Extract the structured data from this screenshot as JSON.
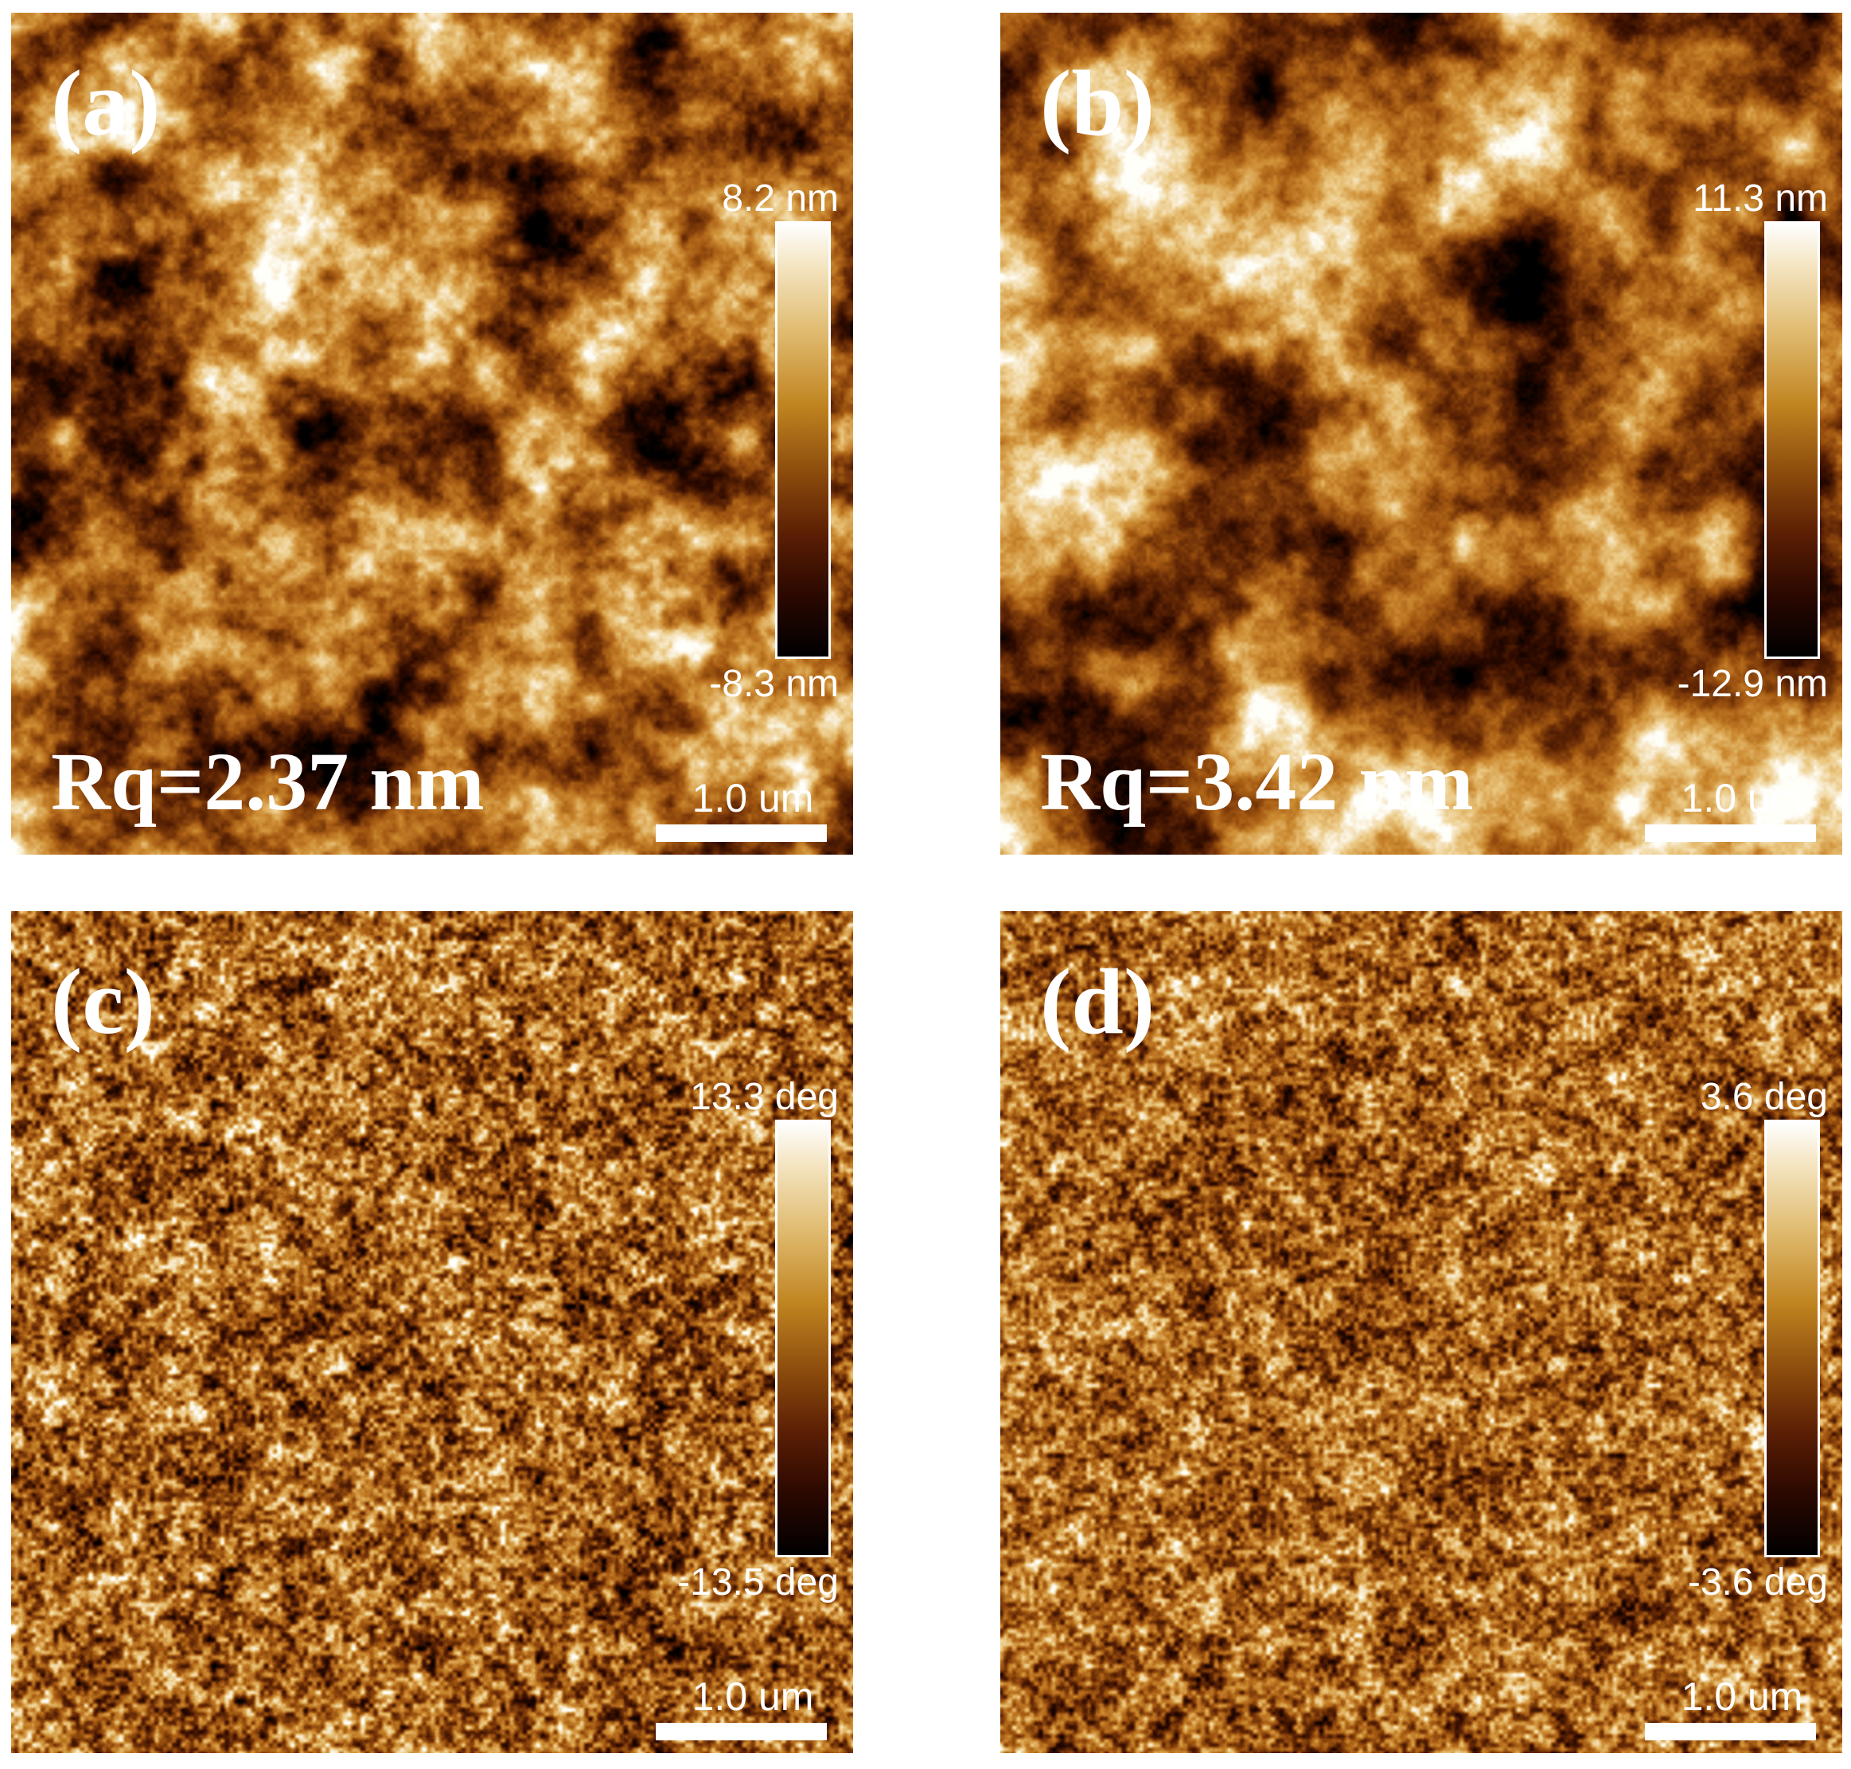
{
  "colors": {
    "afm_dark": "#000000",
    "afm_mid": "#a85e12",
    "afm_light": "#ffffff",
    "text": "#ffffff",
    "background": "#ffffff"
  },
  "panels": [
    {
      "label": "(a)",
      "image_type": "height",
      "rq": "Rq=2.37 nm",
      "colorbar_max": "8.2 nm",
      "colorbar_min": "-8.3 nm",
      "scale_bar": "1.0 um"
    },
    {
      "label": "(b)",
      "image_type": "height",
      "rq": "Rq=3.42 nm",
      "colorbar_max": "11.3 nm",
      "colorbar_min": "-12.9 nm",
      "scale_bar": "1.0 um"
    },
    {
      "label": "(c)",
      "image_type": "phase",
      "colorbar_max": "13.3 deg",
      "colorbar_min": "-13.5 deg",
      "scale_bar": "1.0 um"
    },
    {
      "label": "(d)",
      "image_type": "phase",
      "colorbar_max": "3.6 deg",
      "colorbar_min": "-3.6 deg",
      "scale_bar": "1.0 um"
    }
  ]
}
